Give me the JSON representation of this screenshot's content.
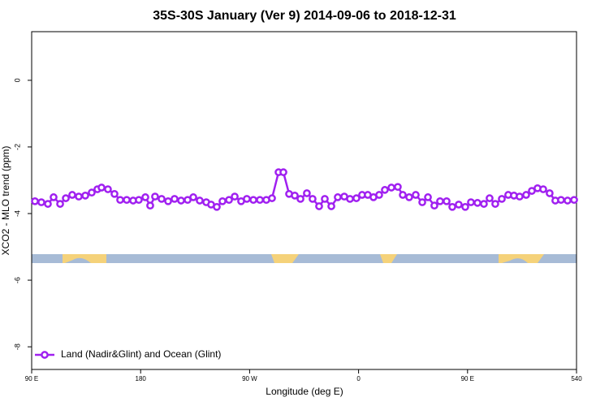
{
  "chart_data": {
    "type": "line",
    "title": "35S-30S January (Ver 9)   2014-09-06 to 2018-12-31",
    "xlabel": "Longitude (deg E)",
    "ylabel": "XCO2 - MLO trend (ppm)",
    "x": [
      92.7,
      98.0,
      103.4,
      108.1,
      113.5,
      118.2,
      123.5,
      128.9,
      134.3,
      139.6,
      144.3,
      147.7,
      153.0,
      158.4,
      163.1,
      168.5,
      173.8,
      178.5,
      183.9,
      187.9,
      191.9,
      197.3,
      202.7,
      208.0,
      213.4,
      218.8,
      223.5,
      228.8,
      234.2,
      238.2,
      242.9,
      247.6,
      253.0,
      257.7,
      263.0,
      267.7,
      273.1,
      278.5,
      283.8,
      288.5,
      293.9,
      297.9,
      302.6,
      307.3,
      312.0,
      317.3,
      322.0,
      327.4,
      332.1,
      337.5,
      342.8,
      348.2,
      352.9,
      358.2,
      362.9,
      367.6,
      372.3,
      377.0,
      381.7,
      387.1,
      392.4,
      396.5,
      401.8,
      407.2,
      412.6,
      417.3,
      422.6,
      427.3,
      432.7,
      437.4,
      442.7,
      448.1,
      452.8,
      458.2,
      463.5,
      468.2,
      472.9,
      478.3,
      483.6,
      488.3,
      493.0,
      498.4,
      503.1,
      507.8,
      512.5,
      517.8,
      522.5,
      527.2,
      532.6,
      538.0
    ],
    "series": [
      {
        "name": "Land (Nadir&Glint) and Ocean (Glint)",
        "color": "#a020f0",
        "values": [
          -3.63,
          -3.66,
          -3.71,
          -3.51,
          -3.71,
          -3.54,
          -3.44,
          -3.49,
          -3.46,
          -3.37,
          -3.27,
          -3.22,
          -3.27,
          -3.41,
          -3.59,
          -3.59,
          -3.61,
          -3.59,
          -3.51,
          -3.76,
          -3.49,
          -3.56,
          -3.63,
          -3.56,
          -3.61,
          -3.59,
          -3.51,
          -3.61,
          -3.66,
          -3.73,
          -3.8,
          -3.63,
          -3.59,
          -3.49,
          -3.63,
          -3.56,
          -3.59,
          -3.59,
          -3.59,
          -3.54,
          -2.76,
          -2.76,
          -3.41,
          -3.46,
          -3.56,
          -3.39,
          -3.56,
          -3.78,
          -3.56,
          -3.78,
          -3.51,
          -3.49,
          -3.56,
          -3.54,
          -3.44,
          -3.44,
          -3.51,
          -3.44,
          -3.29,
          -3.22,
          -3.2,
          -3.44,
          -3.51,
          -3.44,
          -3.66,
          -3.51,
          -3.76,
          -3.63,
          -3.63,
          -3.8,
          -3.73,
          -3.8,
          -3.66,
          -3.68,
          -3.71,
          -3.54,
          -3.71,
          -3.56,
          -3.44,
          -3.46,
          -3.49,
          -3.44,
          -3.32,
          -3.24,
          -3.27,
          -3.39,
          -3.61,
          -3.59,
          -3.61,
          -3.59
        ]
      }
    ],
    "xlim": [
      90,
      540
    ],
    "xticks": [
      {
        "value": 90,
        "label": "90 E"
      },
      180,
      {
        "value": 270,
        "label": "90 W"
      },
      {
        "value": 360,
        "label": "0"
      },
      {
        "value": 450,
        "label": "90 E"
      },
      540
    ],
    "ylim": [
      -8.68,
      1.46
    ],
    "yticks": [
      0,
      -2,
      -4,
      -6,
      -8
    ],
    "legend": "bottom-left"
  }
}
